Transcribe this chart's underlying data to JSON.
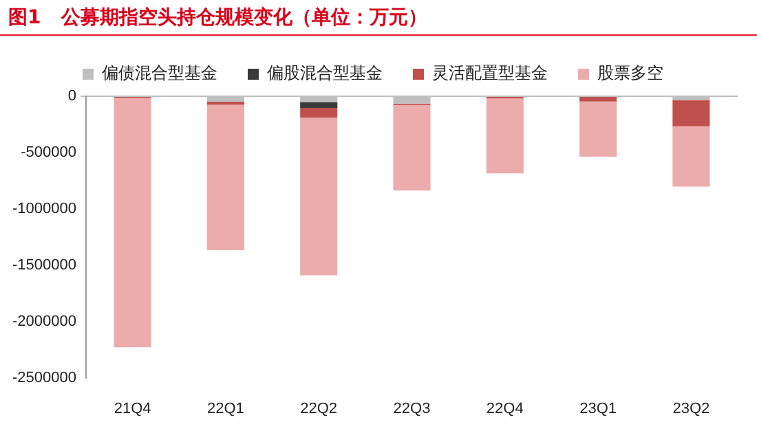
{
  "chart_data": {
    "type": "bar",
    "title": "图1   公募期指空头持仓规模变化（单位：万元）",
    "stacked": true,
    "legend": "top",
    "grid": false,
    "categories": [
      "21Q4",
      "22Q1",
      "22Q2",
      "22Q3",
      "22Q4",
      "23Q1",
      "23Q2"
    ],
    "series": [
      {
        "name": "偏债混合型基金",
        "color": "#bfbfbf",
        "values": [
          0,
          -47000,
          -52000,
          -65000,
          0,
          0,
          -34000
        ]
      },
      {
        "name": "偏股混合型基金",
        "color": "#3a3a3a",
        "values": [
          0,
          0,
          -52000,
          0,
          0,
          0,
          0
        ]
      },
      {
        "name": "灵活配置型基金",
        "color": "#c0504d",
        "values": [
          -15000,
          -30000,
          -86000,
          -13000,
          -20000,
          -47000,
          -233000
        ]
      },
      {
        "name": "股票多空",
        "color": "#ecacac",
        "values": [
          -2215000,
          -1290000,
          -1400000,
          -760000,
          -665000,
          -490000,
          -535000
        ]
      }
    ],
    "ylim": [
      -2500000,
      0
    ],
    "yticks": [
      0,
      -500000,
      -1000000,
      -1500000,
      -2000000,
      -2500000
    ]
  }
}
